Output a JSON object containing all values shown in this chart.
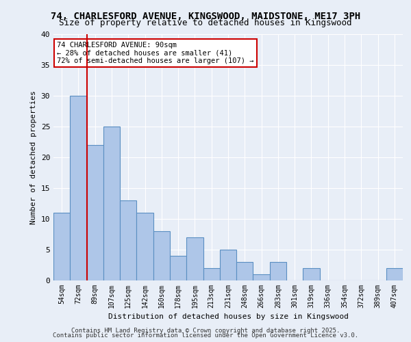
{
  "title_line1": "74, CHARLESFORD AVENUE, KINGSWOOD, MAIDSTONE, ME17 3PH",
  "title_line2": "Size of property relative to detached houses in Kingswood",
  "xlabel": "Distribution of detached houses by size in Kingswood",
  "ylabel": "Number of detached properties",
  "categories": [
    "54sqm",
    "72sqm",
    "89sqm",
    "107sqm",
    "125sqm",
    "142sqm",
    "160sqm",
    "178sqm",
    "195sqm",
    "213sqm",
    "231sqm",
    "248sqm",
    "266sqm",
    "283sqm",
    "301sqm",
    "319sqm",
    "336sqm",
    "354sqm",
    "372sqm",
    "389sqm",
    "407sqm"
  ],
  "values": [
    11,
    30,
    22,
    25,
    13,
    11,
    8,
    4,
    7,
    2,
    5,
    3,
    1,
    3,
    0,
    2,
    0,
    0,
    0,
    0,
    2
  ],
  "bar_color": "#aec6e8",
  "bar_edge_color": "#5a8fc2",
  "property_line_x": 2,
  "property_size": "90sqm",
  "annotation_text": "74 CHARLESFORD AVENUE: 90sqm\n← 28% of detached houses are smaller (41)\n72% of semi-detached houses are larger (107) →",
  "annotation_box_color": "#ffffff",
  "annotation_box_edge": "#cc0000",
  "vline_color": "#cc0000",
  "ylim": [
    0,
    40
  ],
  "yticks": [
    0,
    5,
    10,
    15,
    20,
    25,
    30,
    35,
    40
  ],
  "bg_color": "#e8eef7",
  "plot_bg_color": "#e8eef7",
  "grid_color": "#ffffff",
  "footer_line1": "Contains HM Land Registry data © Crown copyright and database right 2025.",
  "footer_line2": "Contains public sector information licensed under the Open Government Licence v3.0."
}
